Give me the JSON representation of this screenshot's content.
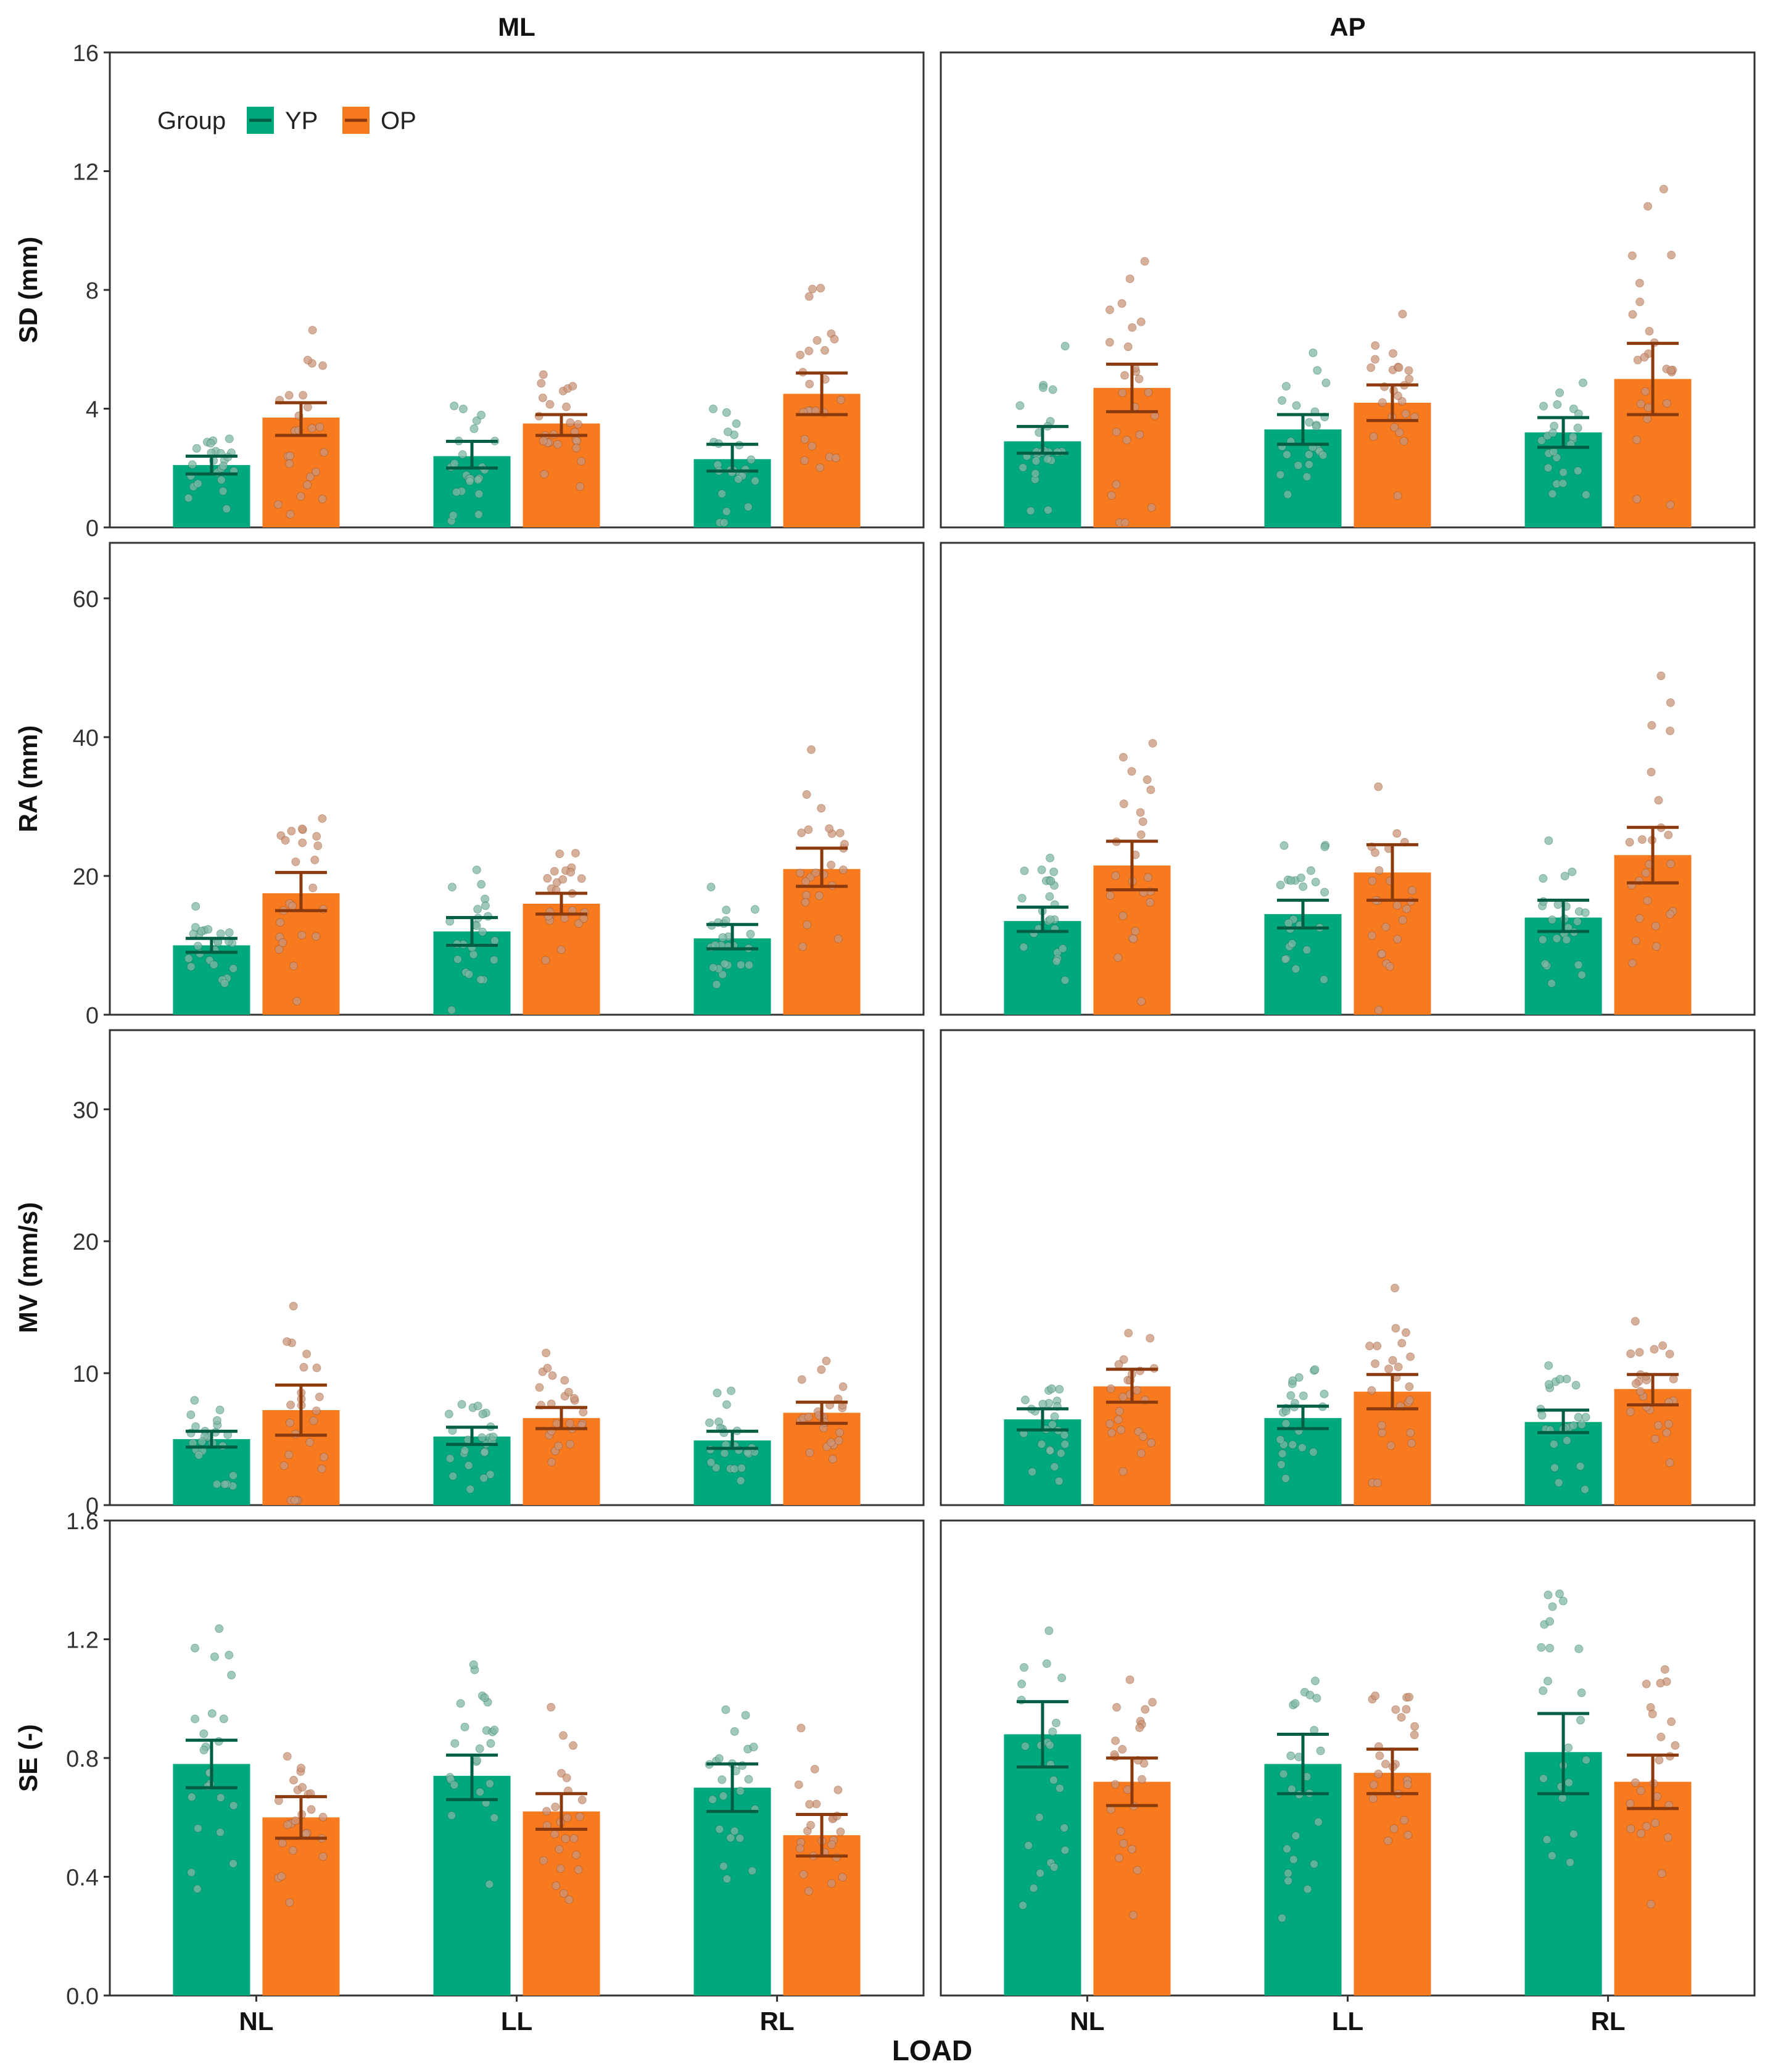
{
  "colors": {
    "YP": "#00A87E",
    "OP": "#F77A1F",
    "YP_err": "#005E44",
    "OP_err": "#8B3A0D",
    "YP_pt": "#7FB7A5",
    "OP_pt": "#C9967B"
  },
  "chart_data": {
    "type": "bar",
    "xlabel": "LOAD",
    "facet_columns": [
      "ML",
      "AP"
    ],
    "categories": [
      "NL",
      "LL",
      "RL"
    ],
    "legend": {
      "title": "Group",
      "entries": [
        "YP",
        "OP"
      ],
      "placement": "top-left"
    },
    "rows": [
      {
        "ylabel": "SD (mm)",
        "ylim": [
          0,
          16
        ],
        "ticks": [
          "0",
          "4",
          "8",
          "12",
          "16"
        ],
        "ML": {
          "YP": {
            "mean": [
              2.1,
              2.4,
              2.3
            ],
            "lo": [
              1.8,
              2.0,
              1.9
            ],
            "hi": [
              2.4,
              2.9,
              2.8
            ]
          },
          "OP": {
            "mean": [
              3.7,
              3.5,
              4.5
            ],
            "lo": [
              3.1,
              3.1,
              3.8
            ],
            "hi": [
              4.2,
              3.8,
              5.2
            ]
          }
        },
        "AP": {
          "YP": {
            "mean": [
              2.9,
              3.3,
              3.2
            ],
            "lo": [
              2.5,
              2.8,
              2.7
            ],
            "hi": [
              3.4,
              3.8,
              3.7
            ]
          },
          "OP": {
            "mean": [
              4.7,
              4.2,
              5.0
            ],
            "lo": [
              3.9,
              3.6,
              3.8
            ],
            "hi": [
              5.5,
              4.8,
              6.2
            ]
          }
        }
      },
      {
        "ylabel": "RA (mm)",
        "ylim": [
          0,
          68
        ],
        "ticks": [
          "0",
          "20",
          "40",
          "60"
        ],
        "ML": {
          "YP": {
            "mean": [
              10,
              12,
              11
            ],
            "lo": [
              9,
              10,
              9.5
            ],
            "hi": [
              11,
              14,
              13
            ]
          },
          "OP": {
            "mean": [
              17.5,
              16,
              21
            ],
            "lo": [
              15,
              14.5,
              18.5
            ],
            "hi": [
              20.5,
              17.5,
              24
            ]
          }
        },
        "AP": {
          "YP": {
            "mean": [
              13.5,
              14.5,
              14
            ],
            "lo": [
              12,
              12.5,
              12
            ],
            "hi": [
              15.5,
              16.5,
              16.5
            ]
          },
          "OP": {
            "mean": [
              21.5,
              20.5,
              23
            ],
            "lo": [
              18,
              16.5,
              19
            ],
            "hi": [
              25,
              24.5,
              27
            ]
          }
        }
      },
      {
        "ylabel": "MV (mm/s)",
        "ylim": [
          0,
          36
        ],
        "ticks": [
          "0",
          "10",
          "20",
          "30"
        ],
        "ML": {
          "YP": {
            "mean": [
              5,
              5.2,
              4.9
            ],
            "lo": [
              4.4,
              4.6,
              4.3
            ],
            "hi": [
              5.6,
              5.9,
              5.6
            ]
          },
          "OP": {
            "mean": [
              7.2,
              6.6,
              7.0
            ],
            "lo": [
              5.3,
              5.8,
              6.2
            ],
            "hi": [
              9.1,
              7.4,
              7.8
            ]
          }
        },
        "AP": {
          "YP": {
            "mean": [
              6.5,
              6.6,
              6.3
            ],
            "lo": [
              5.7,
              5.8,
              5.5
            ],
            "hi": [
              7.3,
              7.5,
              7.2
            ]
          },
          "OP": {
            "mean": [
              9.0,
              8.6,
              8.8
            ],
            "lo": [
              7.8,
              7.3,
              7.6
            ],
            "hi": [
              10.3,
              9.9,
              9.9
            ]
          }
        }
      },
      {
        "ylabel": "SE (-)",
        "ylim": [
          0,
          1.6
        ],
        "ticks": [
          "0.0",
          "0.4",
          "0.8",
          "1.2",
          "1.6"
        ],
        "ML": {
          "YP": {
            "mean": [
              0.78,
              0.74,
              0.7
            ],
            "lo": [
              0.7,
              0.66,
              0.62
            ],
            "hi": [
              0.86,
              0.81,
              0.78
            ]
          },
          "OP": {
            "mean": [
              0.6,
              0.62,
              0.54
            ],
            "lo": [
              0.53,
              0.56,
              0.47
            ],
            "hi": [
              0.67,
              0.68,
              0.61
            ]
          }
        },
        "AP": {
          "YP": {
            "mean": [
              0.88,
              0.78,
              0.82
            ],
            "lo": [
              0.77,
              0.68,
              0.68
            ],
            "hi": [
              0.99,
              0.88,
              0.95
            ]
          },
          "OP": {
            "mean": [
              0.72,
              0.75,
              0.72
            ],
            "lo": [
              0.64,
              0.68,
              0.63
            ],
            "hi": [
              0.8,
              0.83,
              0.81
            ]
          }
        }
      }
    ]
  }
}
